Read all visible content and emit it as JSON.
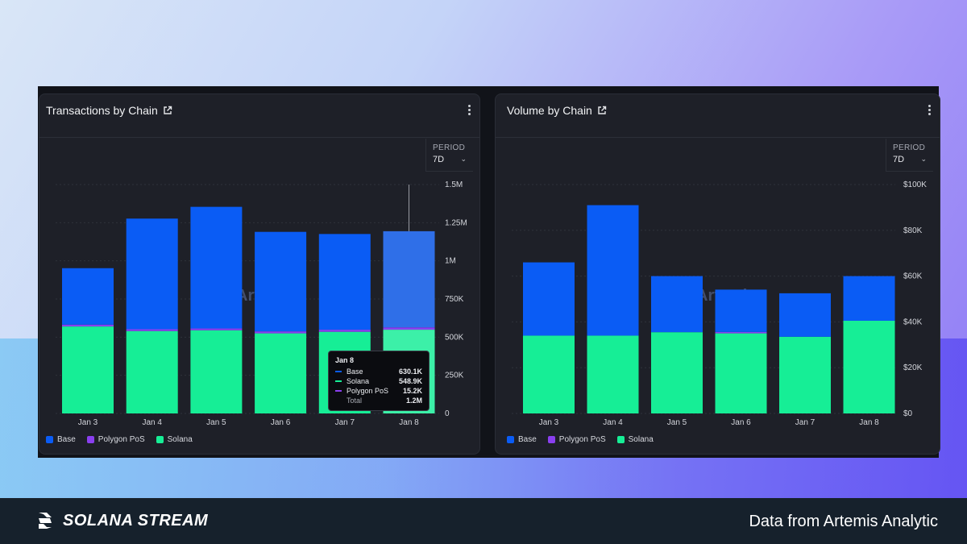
{
  "colors": {
    "base": "#0a5cf5",
    "base_hover": "#2f6fe8",
    "polygon": "#8a3ff0",
    "solana": "#16ee96",
    "solana_hover": "#3cf0a8",
    "grid": "#2f323b",
    "text": "#d4d6dc"
  },
  "panels": [
    {
      "title": "Transactions by Chain",
      "period_label": "PERIOD",
      "period_value": "7D",
      "watermark": "Artemis",
      "legend": [
        {
          "label": "Base",
          "color": "#0a5cf5"
        },
        {
          "label": "Polygon PoS",
          "color": "#8a3ff0"
        },
        {
          "label": "Solana",
          "color": "#16ee96"
        }
      ]
    },
    {
      "title": "Volume by Chain",
      "period_label": "PERIOD",
      "period_value": "7D",
      "watermark": "Artemis",
      "legend": [
        {
          "label": "Base",
          "color": "#0a5cf5"
        },
        {
          "label": "Polygon PoS",
          "color": "#8a3ff0"
        },
        {
          "label": "Solana",
          "color": "#16ee96"
        }
      ]
    }
  ],
  "tooltip": {
    "title": "Jan 8",
    "rows": [
      {
        "name": "Base",
        "value": "630.1K",
        "color": "#0a5cf5"
      },
      {
        "name": "Solana",
        "value": "548.9K",
        "color": "#16ee96"
      },
      {
        "name": "Polygon PoS",
        "value": "15.2K",
        "color": "#8a3ff0"
      }
    ],
    "total_label": "Total",
    "total_value": "1.2M"
  },
  "chart_data": [
    {
      "type": "bar",
      "stacked": true,
      "title": "Transactions by Chain",
      "categories": [
        "Jan 3",
        "Jan 4",
        "Jan 5",
        "Jan 6",
        "Jan 7",
        "Jan 8"
      ],
      "series": [
        {
          "name": "Solana",
          "values": [
            570000,
            540000,
            545000,
            525000,
            535000,
            548900
          ]
        },
        {
          "name": "Polygon PoS",
          "values": [
            12000,
            12000,
            12000,
            13000,
            14000,
            15200
          ]
        },
        {
          "name": "Base",
          "values": [
            370000,
            725000,
            797000,
            652000,
            627000,
            630100
          ]
        }
      ],
      "ylim": [
        0,
        1500000
      ],
      "yticks": [
        0,
        250000,
        500000,
        750000,
        1000000,
        1250000,
        1500000
      ],
      "ytick_labels": [
        "0",
        "250K",
        "500K",
        "750K",
        "1M",
        "1.25M",
        "1.5M"
      ],
      "highlight_index": 5
    },
    {
      "type": "bar",
      "stacked": true,
      "title": "Volume by Chain",
      "categories": [
        "Jan 3",
        "Jan 4",
        "Jan 5",
        "Jan 6",
        "Jan 7",
        "Jan 8"
      ],
      "series": [
        {
          "name": "Solana",
          "values": [
            34000,
            34000,
            35500,
            35000,
            33500,
            40500
          ]
        },
        {
          "name": "Polygon PoS",
          "values": [
            0,
            0,
            0,
            600,
            0,
            0
          ]
        },
        {
          "name": "Base",
          "values": [
            32000,
            57000,
            24500,
            18500,
            19000,
            19500
          ]
        }
      ],
      "ylim": [
        0,
        100000
      ],
      "yticks": [
        0,
        20000,
        40000,
        60000,
        80000,
        100000
      ],
      "ytick_labels": [
        "$0",
        "$20K",
        "$40K",
        "$60K",
        "$80K",
        "$100K"
      ]
    }
  ],
  "footer": {
    "brand": "SOLANA STREAM",
    "credit": "Data from Artemis Analytic"
  }
}
